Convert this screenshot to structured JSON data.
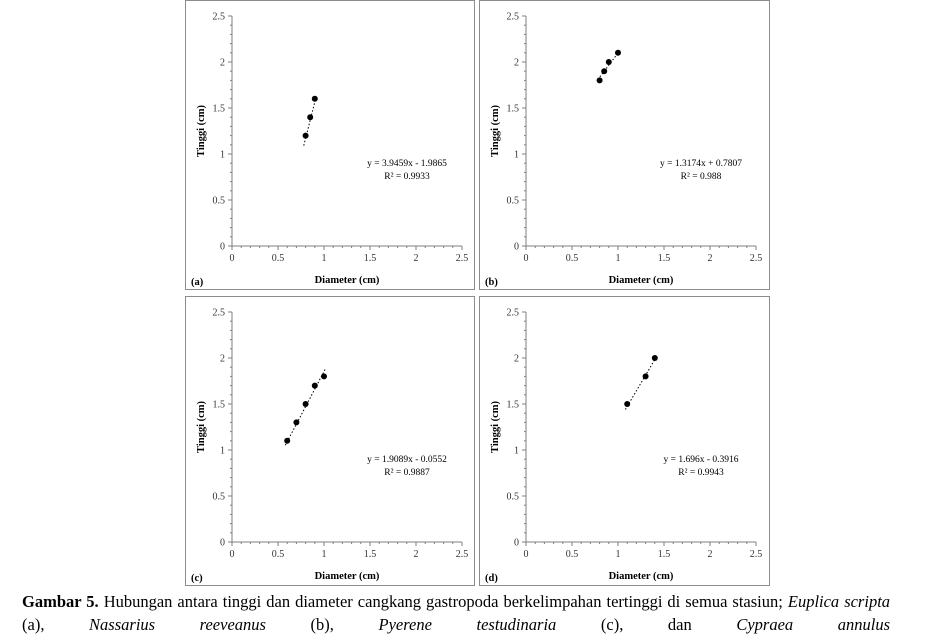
{
  "chart_data": [
    {
      "type": "scatter",
      "panel_label": "(a)",
      "xlabel": "Diameter (cm)",
      "ylabel": "Tinggi (cm)",
      "xlim": [
        0,
        2.5
      ],
      "ylim": [
        0,
        2.5
      ],
      "xticks": [
        "0",
        "0.5",
        "1",
        "1.5",
        "2",
        "2.5"
      ],
      "yticks": [
        "0",
        "0.5",
        "1",
        "1.5",
        "2",
        "2.5"
      ],
      "points": [
        {
          "x": 0.8,
          "y": 1.2
        },
        {
          "x": 0.85,
          "y": 1.4
        },
        {
          "x": 0.9,
          "y": 1.6
        }
      ],
      "trendline": {
        "slope": 3.9459,
        "intercept": -1.9865,
        "style": "dotted"
      },
      "equation": "y = 3.9459x - 1.9865",
      "r2": "R² = 0.9933"
    },
    {
      "type": "scatter",
      "panel_label": "(b)",
      "xlabel": "Diameter (cm)",
      "ylabel": "Tinggi (cm)",
      "xlim": [
        0,
        2.5
      ],
      "ylim": [
        0,
        2.5
      ],
      "xticks": [
        "0",
        "0.5",
        "1",
        "1.5",
        "2",
        "2.5"
      ],
      "yticks": [
        "0",
        "0.5",
        "1",
        "1.5",
        "2",
        "2.5"
      ],
      "points": [
        {
          "x": 0.8,
          "y": 1.8
        },
        {
          "x": 0.85,
          "y": 1.9
        },
        {
          "x": 0.9,
          "y": 2.0
        },
        {
          "x": 1.0,
          "y": 2.1
        }
      ],
      "trendline": {
        "slope": 1.3174,
        "intercept": 0.7807,
        "style": "dotted"
      },
      "equation": "y = 1.3174x + 0.7807",
      "r2": "R² = 0.988"
    },
    {
      "type": "scatter",
      "panel_label": "(c)",
      "xlabel": "Diameter (cm)",
      "ylabel": "Tinggi (cm)",
      "xlim": [
        0,
        2.5
      ],
      "ylim": [
        0,
        2.5
      ],
      "xticks": [
        "0",
        "0.5",
        "1",
        "1.5",
        "2",
        "2.5"
      ],
      "yticks": [
        "0",
        "0.5",
        "1",
        "1.5",
        "2",
        "2.5"
      ],
      "points": [
        {
          "x": 0.6,
          "y": 1.1
        },
        {
          "x": 0.7,
          "y": 1.3
        },
        {
          "x": 0.8,
          "y": 1.5
        },
        {
          "x": 0.9,
          "y": 1.7
        },
        {
          "x": 1.0,
          "y": 1.8
        }
      ],
      "trendline": {
        "slope": 1.9089,
        "intercept": -0.0552,
        "style": "dotted"
      },
      "equation": "y = 1.9089x - 0.0552",
      "r2": "R² = 0.9887"
    },
    {
      "type": "scatter",
      "panel_label": "(d)",
      "xlabel": "Diameter (cm)",
      "ylabel": "Tinggi (cm)",
      "xlim": [
        0,
        2.5
      ],
      "ylim": [
        0,
        2.5
      ],
      "xticks": [
        "0",
        "0.5",
        "1",
        "1.5",
        "2",
        "2.5"
      ],
      "yticks": [
        "0",
        "0.5",
        "1",
        "1.5",
        "2",
        "2.5"
      ],
      "points": [
        {
          "x": 1.1,
          "y": 1.5
        },
        {
          "x": 1.3,
          "y": 1.8
        },
        {
          "x": 1.4,
          "y": 2.0
        }
      ],
      "trendline": {
        "slope": 1.696,
        "intercept": -0.3916,
        "style": "dotted"
      },
      "equation": "y = 1.696x - 0.3916",
      "r2": "R² = 0.9943"
    }
  ],
  "caption": {
    "label": "Gambar 5.",
    "text": "Hubungan antara tinggi dan diameter cangkang gastropoda berkelimpahan tertinggi di semua stasiun;",
    "species": [
      "Euplica scripta",
      "Nassarius reeveanus",
      "Pyerene testudinaria",
      "Cypraea annulus"
    ],
    "refs": [
      "(a),",
      "(b),",
      "(c), dan"
    ]
  },
  "colors": {
    "marker": "#000000",
    "axis": "#7f7f7f",
    "frame": "#8c8c8c"
  }
}
